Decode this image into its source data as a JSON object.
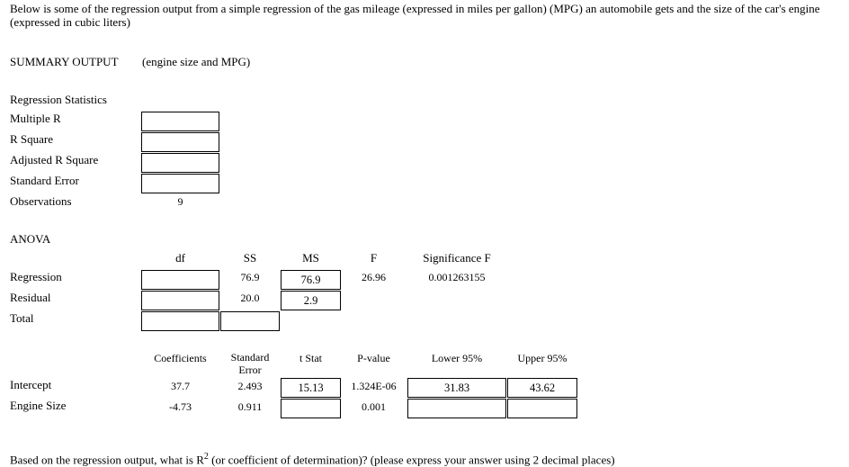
{
  "intro": "Below is some of the regression output from a simple regression of the gas mileage (expressed in miles per gallon) (MPG) an automobile gets and the size of the car's engine (expressed in cubic liters)",
  "summary": {
    "heading": "SUMMARY OUTPUT",
    "subtitle": "(engine size and MPG)"
  },
  "regression_statistics": {
    "heading": "Regression Statistics",
    "labels": [
      "Multiple R",
      "R Square",
      "Adjusted R Square",
      "Standard Error",
      "Observations"
    ],
    "observations_value": "9"
  },
  "anova": {
    "heading": "ANOVA",
    "headers": {
      "df": "df",
      "ss": "SS",
      "ms": "MS",
      "f": "F",
      "sigf": "Significance F"
    },
    "rows": [
      {
        "label": "Regression",
        "ss": "76.9",
        "ms": "76.9",
        "f": "26.96",
        "sigf": "0.001263155"
      },
      {
        "label": "Residual",
        "ss": "20.0",
        "ms": "2.9"
      },
      {
        "label": "Total"
      }
    ]
  },
  "coefficients": {
    "headers": {
      "coef": "Coefficients",
      "se_line1": "Standard",
      "se_line2": "Error",
      "tstat": "t Stat",
      "pvalue": "P-value",
      "lower": "Lower 95%",
      "upper": "Upper 95%"
    },
    "rows": [
      {
        "label": "Intercept",
        "coef": "37.7",
        "se": "2.493",
        "tstat": "15.13",
        "pvalue": "1.324E-06",
        "lower": "31.83",
        "upper": "43.62"
      },
      {
        "label": "Engine Size",
        "coef": "-4.73",
        "se": "0.911",
        "pvalue": "0.001"
      }
    ]
  },
  "question": {
    "before": "Based on the regression output, what is R",
    "sup": "2",
    "after": " (or coefficient of determination)? (please express your answer using 2 decimal places)"
  }
}
